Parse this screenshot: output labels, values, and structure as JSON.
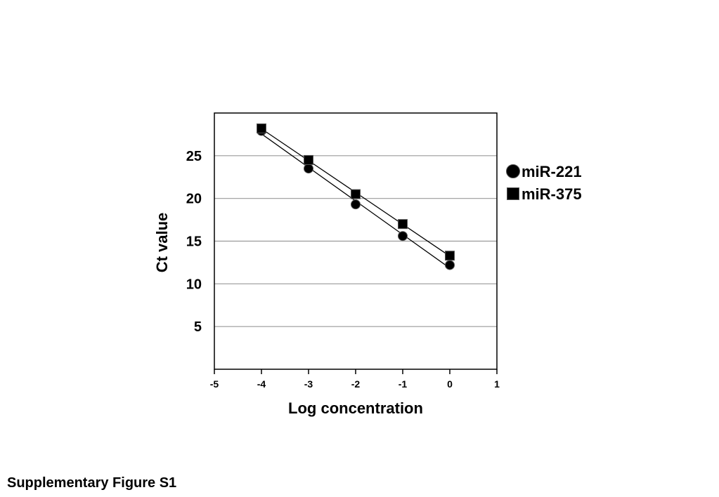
{
  "caption": "Supplementary Figure S1",
  "chart_data": {
    "type": "scatter",
    "xlabel": "Log concentration",
    "ylabel": "Ct value",
    "xlim": [
      -5,
      1
    ],
    "ylim": [
      0,
      30
    ],
    "x_ticks": [
      "-5",
      "-4",
      "-3",
      "-2",
      "-1",
      "0",
      "1"
    ],
    "y_ticks": [
      "5",
      "10",
      "15",
      "20",
      "25"
    ],
    "grid": "horizontal",
    "legend_position": "right",
    "series": [
      {
        "name": "miR-221",
        "marker": "circle",
        "color": "#000000",
        "trendline": true,
        "x": [
          -4,
          -3,
          -2,
          -1,
          0
        ],
        "y": [
          27.9,
          23.5,
          19.3,
          15.6,
          12.2
        ]
      },
      {
        "name": "miR-375",
        "marker": "square",
        "color": "#000000",
        "trendline": true,
        "x": [
          -4,
          -3,
          -2,
          -1,
          0
        ],
        "y": [
          28.2,
          24.5,
          20.5,
          17.0,
          13.3
        ]
      }
    ]
  }
}
